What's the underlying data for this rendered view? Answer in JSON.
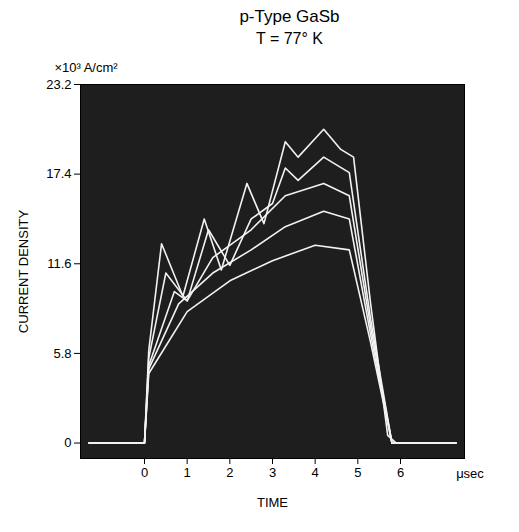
{
  "chart_data": {
    "type": "line",
    "title": "p-Type GaSb",
    "subtitle": "T = 77° K",
    "x_label": "TIME",
    "y_label": "CURRENT DENSITY",
    "annotations": [
      "×10³ A/cm²",
      "μsec"
    ],
    "xlim": [
      -1.5,
      7.5
    ],
    "xticks": [
      0,
      1,
      2,
      3,
      4,
      5,
      6
    ],
    "ylim": [
      -1,
      23.2
    ],
    "yticks": [
      0,
      5.8,
      11.6,
      17.4,
      23.2
    ],
    "grid": false,
    "series": [
      {
        "color": "#f2f2f2",
        "x": [
          -1.3,
          0,
          0.1,
          0.4,
          0.9,
          1.4,
          1.8,
          2.4,
          2.8,
          3.3,
          3.6,
          4.2,
          4.6,
          4.9,
          5.3,
          5.7,
          5.9,
          7.3
        ],
        "values": [
          0,
          0,
          6,
          12.9,
          9.5,
          14.5,
          11.2,
          16.8,
          14.2,
          19.5,
          18.5,
          20.3,
          19,
          18.5,
          9,
          0.5,
          0,
          0
        ]
      },
      {
        "color": "#f2f2f2",
        "x": [
          -1.3,
          0,
          0.1,
          0.5,
          1.0,
          1.5,
          2.0,
          2.5,
          3.0,
          3.3,
          3.6,
          4.2,
          4.8,
          5.3,
          5.8,
          7.3
        ],
        "values": [
          0,
          0,
          5.5,
          11,
          9.2,
          13.8,
          11.5,
          14.5,
          15.5,
          17.8,
          17,
          18.5,
          17.5,
          8,
          0,
          0
        ]
      },
      {
        "color": "#f2f2f2",
        "x": [
          -1.3,
          0,
          0.1,
          0.7,
          1.0,
          1.6,
          2.5,
          3.3,
          4.2,
          4.8,
          5.3,
          5.8,
          7.3
        ],
        "values": [
          0,
          0,
          5,
          9.8,
          9.2,
          12,
          13.8,
          16,
          16.8,
          16,
          7.5,
          0,
          0
        ]
      },
      {
        "color": "#f2f2f2",
        "x": [
          -1.3,
          0,
          0.1,
          0.8,
          1.6,
          2.5,
          3.3,
          4.2,
          4.8,
          5.3,
          5.8,
          7.3
        ],
        "values": [
          0,
          0,
          4.8,
          9,
          11,
          12.5,
          14,
          15,
          14.5,
          7,
          0,
          0
        ]
      },
      {
        "color": "#f2f2f2",
        "x": [
          -1.3,
          0,
          0.1,
          1,
          2,
          3,
          4,
          4.8,
          5.3,
          5.8,
          7.3
        ],
        "values": [
          0,
          0,
          4.5,
          8.5,
          10.5,
          11.8,
          12.8,
          12.5,
          6.5,
          0,
          0
        ]
      }
    ]
  }
}
